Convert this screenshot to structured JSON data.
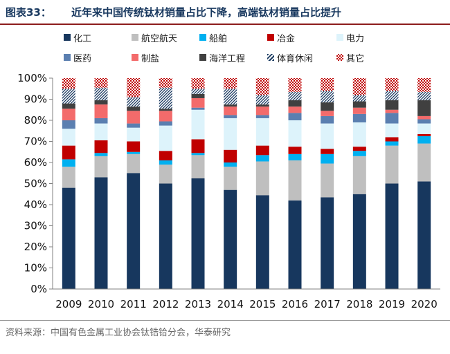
{
  "header": {
    "figure_label": "图表33：",
    "title": "近年来中国传统钛材销量占比下降，高端钛材销量占比提升"
  },
  "source": "资料来源：中国有色金属工业协会钛锆铪分会，华泰研究",
  "chart_data": {
    "type": "bar",
    "stacked": true,
    "title": "近年来中国传统钛材销量占比下降，高端钛材销量占比提升",
    "categories": [
      "2009",
      "2010",
      "2011",
      "2012",
      "2013",
      "2014",
      "2015",
      "2016",
      "2017",
      "2018",
      "2019",
      "2020"
    ],
    "ylim": [
      0,
      100
    ],
    "yticks": [
      "0%",
      "10%",
      "20%",
      "30%",
      "40%",
      "50%",
      "60%",
      "70%",
      "80%",
      "90%",
      "100%"
    ],
    "grid": false,
    "legend_position": "top",
    "series": [
      {
        "name": "化工",
        "color": "#17375e",
        "pattern": "solid",
        "values": [
          48,
          53,
          55,
          50,
          52.5,
          47,
          44.5,
          42,
          43.5,
          45,
          50,
          51
        ]
      },
      {
        "name": "航空航天",
        "color": "#bfbfbf",
        "pattern": "solid",
        "values": [
          10,
          10,
          9,
          9,
          11,
          11,
          16,
          19,
          16,
          18,
          18,
          18
        ]
      },
      {
        "name": "船舶",
        "color": "#00b0f0",
        "pattern": "solid",
        "values": [
          3.5,
          1.5,
          1,
          2,
          1,
          2,
          3,
          3,
          4.5,
          2.5,
          2,
          3.5
        ]
      },
      {
        "name": "冶金",
        "color": "#c00000",
        "pattern": "solid",
        "values": [
          6.5,
          6,
          5,
          4.5,
          6.5,
          6,
          4.5,
          3.5,
          2.5,
          2,
          2,
          1
        ]
      },
      {
        "name": "电力",
        "color": "#ddf3fb",
        "pattern": "solid",
        "values": [
          8,
          8,
          6.5,
          12,
          14,
          15,
          13,
          12.5,
          12,
          11.5,
          6.5,
          5
        ]
      },
      {
        "name": "医药",
        "color": "#5b7fb0",
        "pattern": "solid",
        "values": [
          4,
          2.5,
          2,
          2,
          1,
          1.5,
          1.5,
          3.5,
          3.5,
          4,
          5,
          2
        ]
      },
      {
        "name": "制盐",
        "color": "#f36b6b",
        "pattern": "solid",
        "values": [
          5.5,
          6.5,
          6,
          5,
          4.5,
          4,
          4,
          3,
          2.5,
          3,
          1.5,
          1.5
        ]
      },
      {
        "name": "海洋工程",
        "color": "#404040",
        "pattern": "solid",
        "values": [
          2.5,
          2,
          2,
          1,
          2,
          1,
          1,
          3,
          4,
          3,
          4.5,
          7.5
        ]
      },
      {
        "name": "体育休闲",
        "color": "#17375e",
        "pattern": "hatch",
        "values": [
          7,
          6,
          4.5,
          10,
          2.5,
          7.5,
          4.5,
          4,
          5.5,
          3,
          4.5,
          4
        ]
      },
      {
        "name": "其它",
        "color": "#c00000",
        "pattern": "checker",
        "values": [
          5,
          4.5,
          9,
          4.5,
          5,
          5,
          8,
          6.5,
          6,
          8,
          6,
          6.5
        ]
      }
    ]
  }
}
